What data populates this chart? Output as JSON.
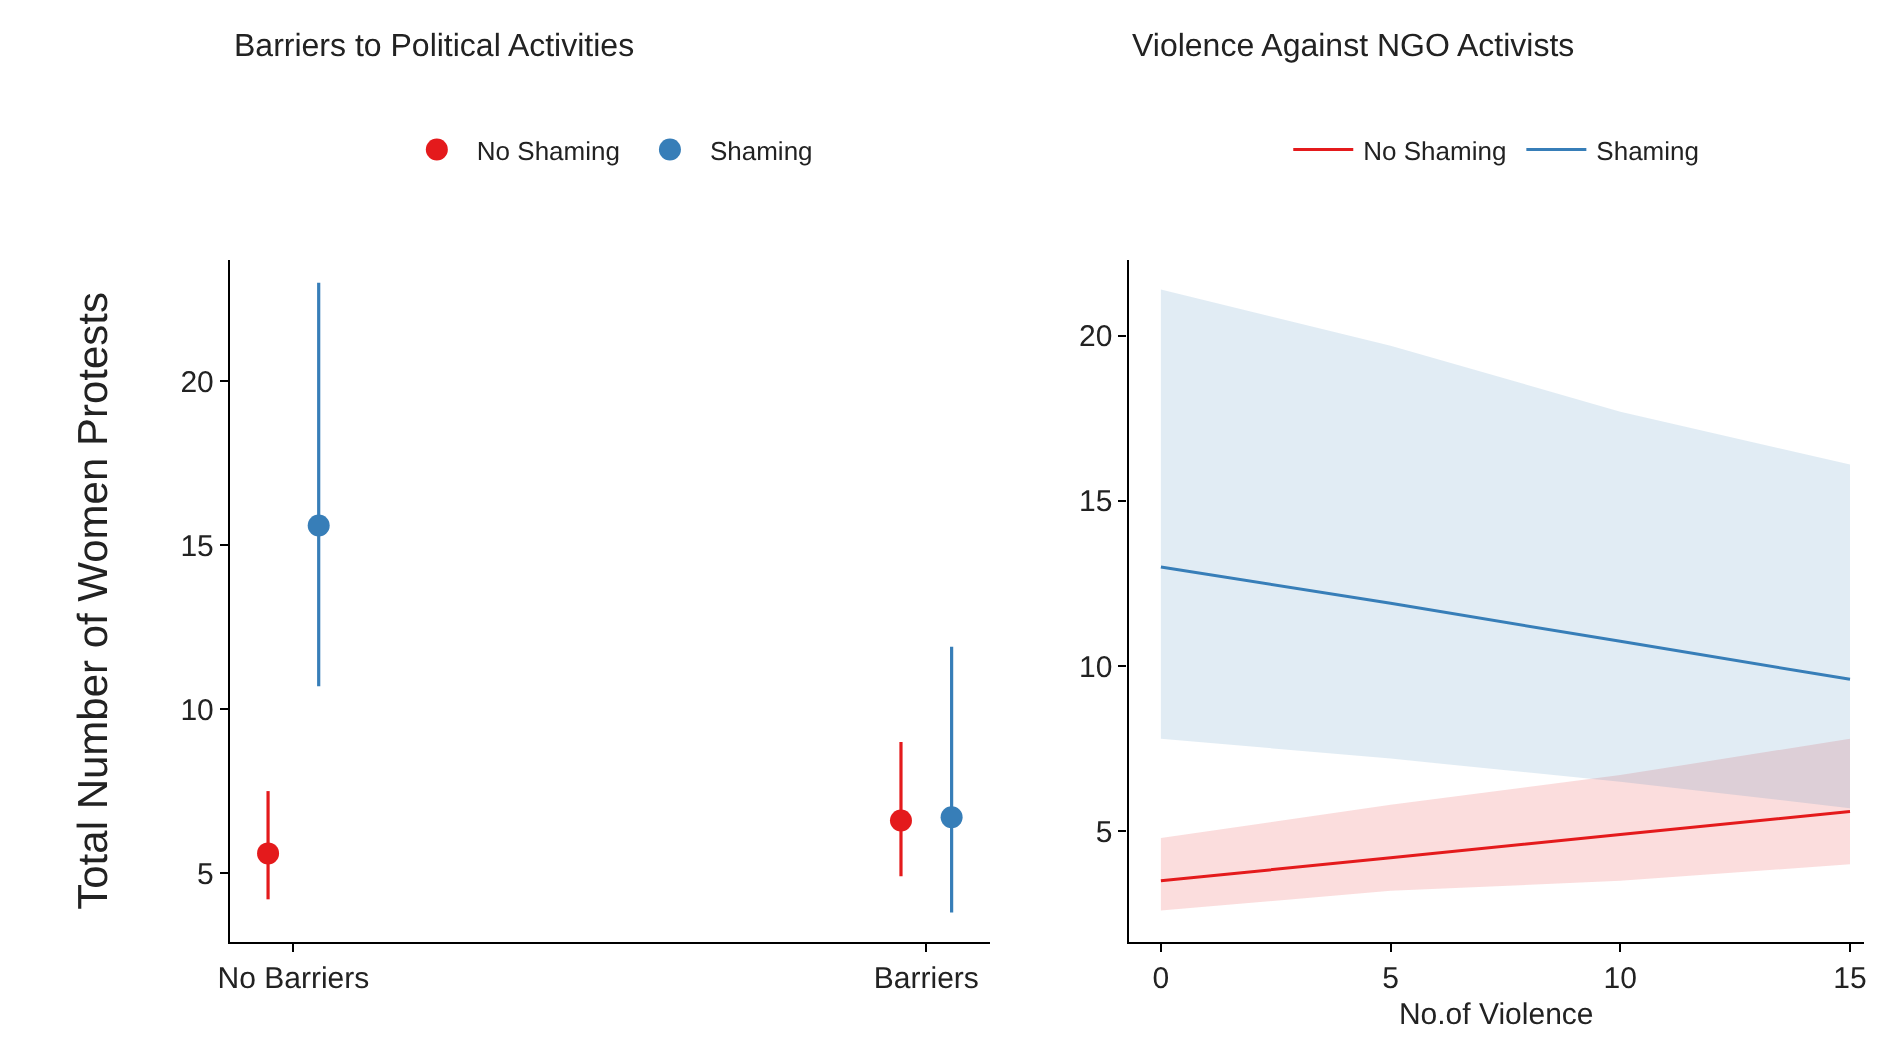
{
  "chart_data": [
    {
      "type": "scatter",
      "title": "Barriers to Political Activities",
      "ylabel": "Total Number of Women Protests",
      "categories": [
        "No Barriers",
        "Barriers"
      ],
      "ylim": [
        2.9,
        23.7
      ],
      "yticks": [
        5,
        10,
        15,
        20
      ],
      "legend": "top",
      "marker": "circle",
      "series": [
        {
          "name": "No Shaming",
          "color": "#e41a1c",
          "values": [
            5.6,
            6.6
          ],
          "errors": [
            [
              4.2,
              7.5
            ],
            [
              4.9,
              9.0
            ]
          ]
        },
        {
          "name": "Shaming",
          "color": "#377eb8",
          "values": [
            15.6,
            6.7
          ],
          "errors": [
            [
              10.7,
              23.0
            ],
            [
              3.8,
              11.9
            ]
          ]
        }
      ]
    },
    {
      "type": "line",
      "title": "Violence Against NGO Activists",
      "xlabel": "No.of Violence",
      "x": [
        0,
        5,
        10,
        15
      ],
      "xlim": [
        -0.7,
        15.3
      ],
      "xticks": [
        0,
        5,
        10,
        15
      ],
      "ylim": [
        1.65,
        22.3
      ],
      "yticks": [
        5,
        10,
        15,
        20
      ],
      "legend": "top",
      "series": [
        {
          "name": "No Shaming",
          "color": "#e41a1c",
          "values": [
            3.5,
            4.2,
            4.9,
            5.6
          ],
          "lower": [
            2.6,
            3.2,
            3.5,
            4.0
          ],
          "upper": [
            4.8,
            5.8,
            6.7,
            7.8
          ]
        },
        {
          "name": "Shaming",
          "color": "#377eb8",
          "values": [
            13.0,
            11.9,
            10.75,
            9.6
          ],
          "lower": [
            7.8,
            7.2,
            6.5,
            5.7
          ],
          "upper": [
            21.4,
            19.7,
            17.7,
            16.1
          ]
        }
      ]
    }
  ]
}
